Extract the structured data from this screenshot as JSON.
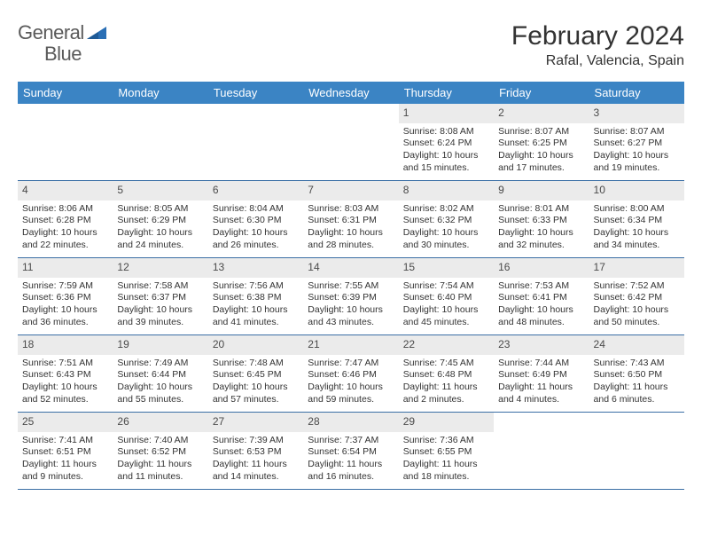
{
  "logo": {
    "text_part1": "General",
    "text_part2": "Blue",
    "icon_color": "#2a6fb5"
  },
  "header": {
    "month_title": "February 2024",
    "location": "Rafal, Valencia, Spain"
  },
  "colors": {
    "header_bg": "#3b84c4",
    "header_text": "#ffffff",
    "row_border": "#3b6fa5",
    "daynum_bg": "#ebebeb",
    "text": "#333333"
  },
  "day_names": [
    "Sunday",
    "Monday",
    "Tuesday",
    "Wednesday",
    "Thursday",
    "Friday",
    "Saturday"
  ],
  "weeks": [
    [
      null,
      null,
      null,
      null,
      {
        "day": "1",
        "sunrise": "Sunrise: 8:08 AM",
        "sunset": "Sunset: 6:24 PM",
        "daylight1": "Daylight: 10 hours",
        "daylight2": "and 15 minutes."
      },
      {
        "day": "2",
        "sunrise": "Sunrise: 8:07 AM",
        "sunset": "Sunset: 6:25 PM",
        "daylight1": "Daylight: 10 hours",
        "daylight2": "and 17 minutes."
      },
      {
        "day": "3",
        "sunrise": "Sunrise: 8:07 AM",
        "sunset": "Sunset: 6:27 PM",
        "daylight1": "Daylight: 10 hours",
        "daylight2": "and 19 minutes."
      }
    ],
    [
      {
        "day": "4",
        "sunrise": "Sunrise: 8:06 AM",
        "sunset": "Sunset: 6:28 PM",
        "daylight1": "Daylight: 10 hours",
        "daylight2": "and 22 minutes."
      },
      {
        "day": "5",
        "sunrise": "Sunrise: 8:05 AM",
        "sunset": "Sunset: 6:29 PM",
        "daylight1": "Daylight: 10 hours",
        "daylight2": "and 24 minutes."
      },
      {
        "day": "6",
        "sunrise": "Sunrise: 8:04 AM",
        "sunset": "Sunset: 6:30 PM",
        "daylight1": "Daylight: 10 hours",
        "daylight2": "and 26 minutes."
      },
      {
        "day": "7",
        "sunrise": "Sunrise: 8:03 AM",
        "sunset": "Sunset: 6:31 PM",
        "daylight1": "Daylight: 10 hours",
        "daylight2": "and 28 minutes."
      },
      {
        "day": "8",
        "sunrise": "Sunrise: 8:02 AM",
        "sunset": "Sunset: 6:32 PM",
        "daylight1": "Daylight: 10 hours",
        "daylight2": "and 30 minutes."
      },
      {
        "day": "9",
        "sunrise": "Sunrise: 8:01 AM",
        "sunset": "Sunset: 6:33 PM",
        "daylight1": "Daylight: 10 hours",
        "daylight2": "and 32 minutes."
      },
      {
        "day": "10",
        "sunrise": "Sunrise: 8:00 AM",
        "sunset": "Sunset: 6:34 PM",
        "daylight1": "Daylight: 10 hours",
        "daylight2": "and 34 minutes."
      }
    ],
    [
      {
        "day": "11",
        "sunrise": "Sunrise: 7:59 AM",
        "sunset": "Sunset: 6:36 PM",
        "daylight1": "Daylight: 10 hours",
        "daylight2": "and 36 minutes."
      },
      {
        "day": "12",
        "sunrise": "Sunrise: 7:58 AM",
        "sunset": "Sunset: 6:37 PM",
        "daylight1": "Daylight: 10 hours",
        "daylight2": "and 39 minutes."
      },
      {
        "day": "13",
        "sunrise": "Sunrise: 7:56 AM",
        "sunset": "Sunset: 6:38 PM",
        "daylight1": "Daylight: 10 hours",
        "daylight2": "and 41 minutes."
      },
      {
        "day": "14",
        "sunrise": "Sunrise: 7:55 AM",
        "sunset": "Sunset: 6:39 PM",
        "daylight1": "Daylight: 10 hours",
        "daylight2": "and 43 minutes."
      },
      {
        "day": "15",
        "sunrise": "Sunrise: 7:54 AM",
        "sunset": "Sunset: 6:40 PM",
        "daylight1": "Daylight: 10 hours",
        "daylight2": "and 45 minutes."
      },
      {
        "day": "16",
        "sunrise": "Sunrise: 7:53 AM",
        "sunset": "Sunset: 6:41 PM",
        "daylight1": "Daylight: 10 hours",
        "daylight2": "and 48 minutes."
      },
      {
        "day": "17",
        "sunrise": "Sunrise: 7:52 AM",
        "sunset": "Sunset: 6:42 PM",
        "daylight1": "Daylight: 10 hours",
        "daylight2": "and 50 minutes."
      }
    ],
    [
      {
        "day": "18",
        "sunrise": "Sunrise: 7:51 AM",
        "sunset": "Sunset: 6:43 PM",
        "daylight1": "Daylight: 10 hours",
        "daylight2": "and 52 minutes."
      },
      {
        "day": "19",
        "sunrise": "Sunrise: 7:49 AM",
        "sunset": "Sunset: 6:44 PM",
        "daylight1": "Daylight: 10 hours",
        "daylight2": "and 55 minutes."
      },
      {
        "day": "20",
        "sunrise": "Sunrise: 7:48 AM",
        "sunset": "Sunset: 6:45 PM",
        "daylight1": "Daylight: 10 hours",
        "daylight2": "and 57 minutes."
      },
      {
        "day": "21",
        "sunrise": "Sunrise: 7:47 AM",
        "sunset": "Sunset: 6:46 PM",
        "daylight1": "Daylight: 10 hours",
        "daylight2": "and 59 minutes."
      },
      {
        "day": "22",
        "sunrise": "Sunrise: 7:45 AM",
        "sunset": "Sunset: 6:48 PM",
        "daylight1": "Daylight: 11 hours",
        "daylight2": "and 2 minutes."
      },
      {
        "day": "23",
        "sunrise": "Sunrise: 7:44 AM",
        "sunset": "Sunset: 6:49 PM",
        "daylight1": "Daylight: 11 hours",
        "daylight2": "and 4 minutes."
      },
      {
        "day": "24",
        "sunrise": "Sunrise: 7:43 AM",
        "sunset": "Sunset: 6:50 PM",
        "daylight1": "Daylight: 11 hours",
        "daylight2": "and 6 minutes."
      }
    ],
    [
      {
        "day": "25",
        "sunrise": "Sunrise: 7:41 AM",
        "sunset": "Sunset: 6:51 PM",
        "daylight1": "Daylight: 11 hours",
        "daylight2": "and 9 minutes."
      },
      {
        "day": "26",
        "sunrise": "Sunrise: 7:40 AM",
        "sunset": "Sunset: 6:52 PM",
        "daylight1": "Daylight: 11 hours",
        "daylight2": "and 11 minutes."
      },
      {
        "day": "27",
        "sunrise": "Sunrise: 7:39 AM",
        "sunset": "Sunset: 6:53 PM",
        "daylight1": "Daylight: 11 hours",
        "daylight2": "and 14 minutes."
      },
      {
        "day": "28",
        "sunrise": "Sunrise: 7:37 AM",
        "sunset": "Sunset: 6:54 PM",
        "daylight1": "Daylight: 11 hours",
        "daylight2": "and 16 minutes."
      },
      {
        "day": "29",
        "sunrise": "Sunrise: 7:36 AM",
        "sunset": "Sunset: 6:55 PM",
        "daylight1": "Daylight: 11 hours",
        "daylight2": "and 18 minutes."
      },
      null,
      null
    ]
  ]
}
